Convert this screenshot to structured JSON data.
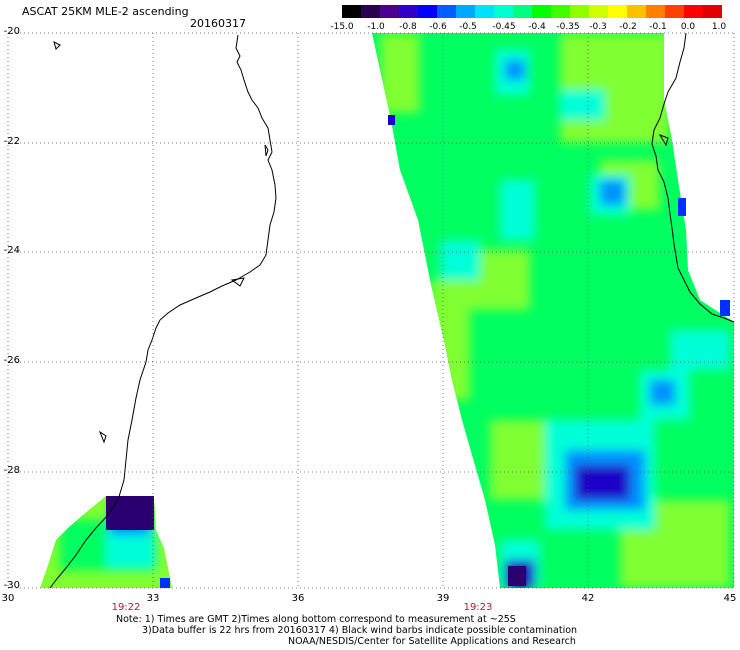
{
  "header": {
    "title": "ASCAT 25KM MLE-2 ascending",
    "date": "20160317"
  },
  "colorbar": {
    "labels": [
      "-15.0",
      "-1.0",
      "-0.8",
      "-0.6",
      "-0.5",
      "-0.45",
      "-0.4",
      "-0.35",
      "-0.3",
      "-0.2",
      "-0.1",
      "0.0",
      "1.0"
    ],
    "colors": [
      "#000000",
      "#2a0050",
      "#4a0090",
      "#3000c8",
      "#0000ff",
      "#0060ff",
      "#00a8ff",
      "#00e0ff",
      "#00ffd0",
      "#00ff80",
      "#00ff00",
      "#40ff00",
      "#90ff00",
      "#d0ff00",
      "#ffff00",
      "#ffc000",
      "#ff8000",
      "#ff4000",
      "#ff0000",
      "#e00000"
    ]
  },
  "axes": {
    "y_labels": [
      "-20",
      "-22",
      "-24",
      "-26",
      "-28",
      "-30"
    ],
    "x_labels": [
      "30",
      "33",
      "36",
      "39",
      "42",
      "45"
    ],
    "lat_range": [
      -30,
      -20
    ],
    "lon_range": [
      30,
      45
    ]
  },
  "times": [
    "19:22",
    "19:23"
  ],
  "notes": [
    "Note: 1) Times are GMT 2)Times along bottom correspond to measurement at ~25S",
    "3)Data buffer is 22 hrs from 20160317 4) Black wind barbs indicate possible contamination",
    "NOAA/NESDIS/Center for Satellite Applications and Research"
  ],
  "colors": {
    "field_green": "#00ff60",
    "field_lime": "#80ff30",
    "field_cyan": "#00ffd8",
    "field_blue": "#0090ff",
    "field_deep": "#1a00c8",
    "field_purple": "#2a0070",
    "coast": "#000000",
    "time_label": "#c8102e"
  }
}
